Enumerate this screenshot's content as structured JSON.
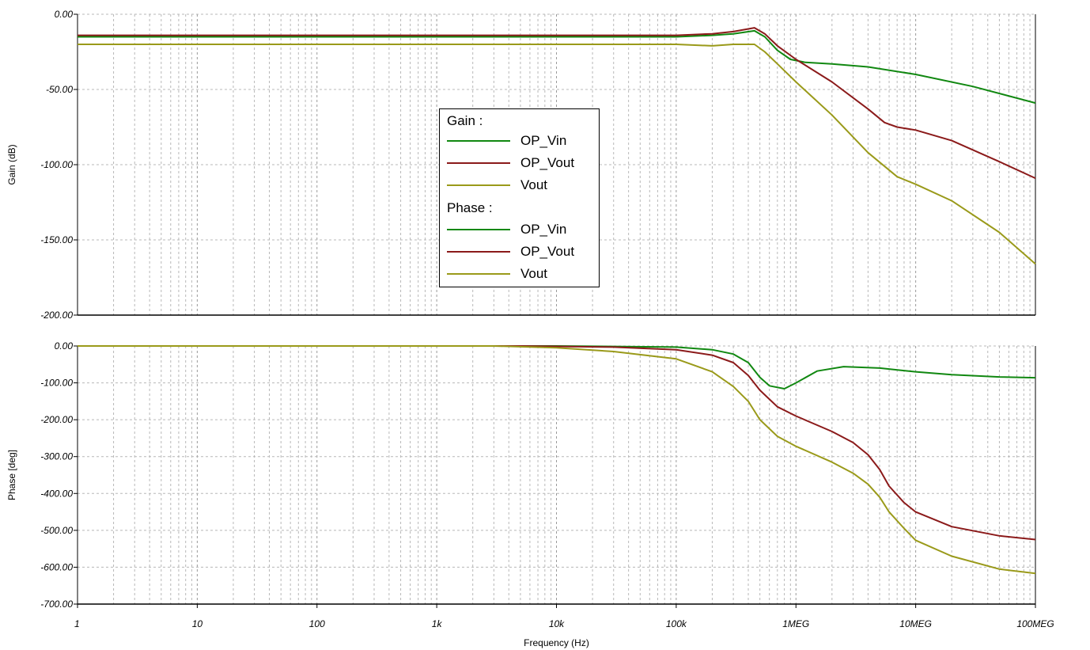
{
  "chart_data": [
    {
      "type": "line",
      "xscale": "log",
      "xlim": [
        1,
        100000000
      ],
      "ylim": [
        -200,
        0
      ],
      "ylabel": "Gain (dB)",
      "xlabel": "",
      "grid": true,
      "yticks": [
        "0.00",
        "-50.00",
        "-100.00",
        "-150.00",
        "-200.00"
      ],
      "yticks_values": [
        0,
        -50,
        -100,
        -150,
        -200
      ],
      "series": [
        {
          "name": "OP_Vin",
          "color": "#118811",
          "x": [
            1,
            1000,
            100000,
            200000,
            300000,
            450000,
            550000,
            700000,
            900000,
            1200000,
            2000000,
            4000000,
            10000000,
            30000000,
            100000000
          ],
          "y": [
            -15,
            -15,
            -15,
            -14,
            -13,
            -11,
            -15,
            -24,
            -30,
            -32,
            -33,
            -35,
            -40,
            -48,
            -59
          ]
        },
        {
          "name": "OP_Vout",
          "color": "#8b1a1a",
          "x": [
            1,
            1000,
            100000,
            200000,
            300000,
            450000,
            550000,
            700000,
            1000000,
            2000000,
            4000000,
            5500000,
            7000000,
            10000000,
            20000000,
            50000000,
            100000000
          ],
          "y": [
            -14,
            -14,
            -14,
            -13,
            -11.5,
            -9,
            -13,
            -21,
            -30,
            -45,
            -63,
            -72,
            -75,
            -77,
            -84,
            -98,
            -109
          ]
        },
        {
          "name": "Vout",
          "color": "#9a9a1a",
          "x": [
            1,
            1000,
            100000,
            200000,
            300000,
            450000,
            550000,
            700000,
            1000000,
            2000000,
            4000000,
            7000000,
            10000000,
            20000000,
            50000000,
            100000000
          ],
          "y": [
            -20,
            -20,
            -20,
            -21,
            -20,
            -20,
            -25,
            -33,
            -45,
            -67,
            -92,
            -108,
            -113,
            -124,
            -145,
            -166
          ]
        }
      ]
    },
    {
      "type": "line",
      "xscale": "log",
      "xlim": [
        1,
        100000000
      ],
      "ylim": [
        -700,
        0
      ],
      "ylabel": "Phase [deg]",
      "xlabel": "Frequency (Hz)",
      "grid": true,
      "yticks": [
        "0.00",
        "-100.00",
        "-200.00",
        "-300.00",
        "-400.00",
        "-500.00",
        "-600.00",
        "-700.00"
      ],
      "yticks_values": [
        0,
        -100,
        -200,
        -300,
        -400,
        -500,
        -600,
        -700
      ],
      "xticks": [
        "1",
        "10",
        "100",
        "1k",
        "10k",
        "100k",
        "1MEG",
        "10MEG",
        "100MEG"
      ],
      "xticks_values": [
        1,
        10,
        100,
        1000,
        10000,
        100000,
        1000000,
        10000000,
        100000000
      ],
      "series": [
        {
          "name": "OP_Vin",
          "color": "#118811",
          "x": [
            1,
            10000,
            100000,
            200000,
            300000,
            400000,
            500000,
            600000,
            800000,
            1000000,
            1500000,
            2500000,
            5000000,
            10000000,
            20000000,
            50000000,
            100000000
          ],
          "y": [
            0,
            0,
            -3,
            -10,
            -22,
            -45,
            -85,
            -108,
            -116,
            -100,
            -68,
            -56,
            -60,
            -70,
            -78,
            -84,
            -86
          ]
        },
        {
          "name": "OP_Vout",
          "color": "#8b1a1a",
          "x": [
            1,
            5000,
            30000,
            100000,
            200000,
            300000,
            400000,
            500000,
            700000,
            1000000,
            2000000,
            3000000,
            4000000,
            5000000,
            6000000,
            8000000,
            10000000,
            20000000,
            50000000,
            100000000
          ],
          "y": [
            0,
            0,
            -3,
            -10,
            -25,
            -45,
            -80,
            -120,
            -165,
            -190,
            -232,
            -262,
            -295,
            -335,
            -380,
            -425,
            -450,
            -490,
            -515,
            -525
          ]
        },
        {
          "name": "Vout",
          "color": "#9a9a1a",
          "x": [
            1,
            3000,
            10000,
            30000,
            100000,
            200000,
            300000,
            400000,
            500000,
            700000,
            1000000,
            2000000,
            3000000,
            4000000,
            5000000,
            6000000,
            8000000,
            10000000,
            20000000,
            50000000,
            100000000
          ],
          "y": [
            0,
            0,
            -5,
            -15,
            -35,
            -70,
            -110,
            -150,
            -200,
            -245,
            -272,
            -315,
            -345,
            -375,
            -410,
            -450,
            -495,
            -527,
            -570,
            -605,
            -617
          ]
        }
      ]
    }
  ],
  "legend": {
    "gain_header": "Gain :",
    "phase_header": "Phase :",
    "gain_items": [
      {
        "name": "OP_Vin",
        "color": "#118811"
      },
      {
        "name": "OP_Vout",
        "color": "#8b1a1a"
      },
      {
        "name": "Vout",
        "color": "#9a9a1a"
      }
    ],
    "phase_items": [
      {
        "name": "OP_Vin",
        "color": "#118811"
      },
      {
        "name": "OP_Vout",
        "color": "#8b1a1a"
      },
      {
        "name": "Vout",
        "color": "#9a9a1a"
      }
    ]
  }
}
